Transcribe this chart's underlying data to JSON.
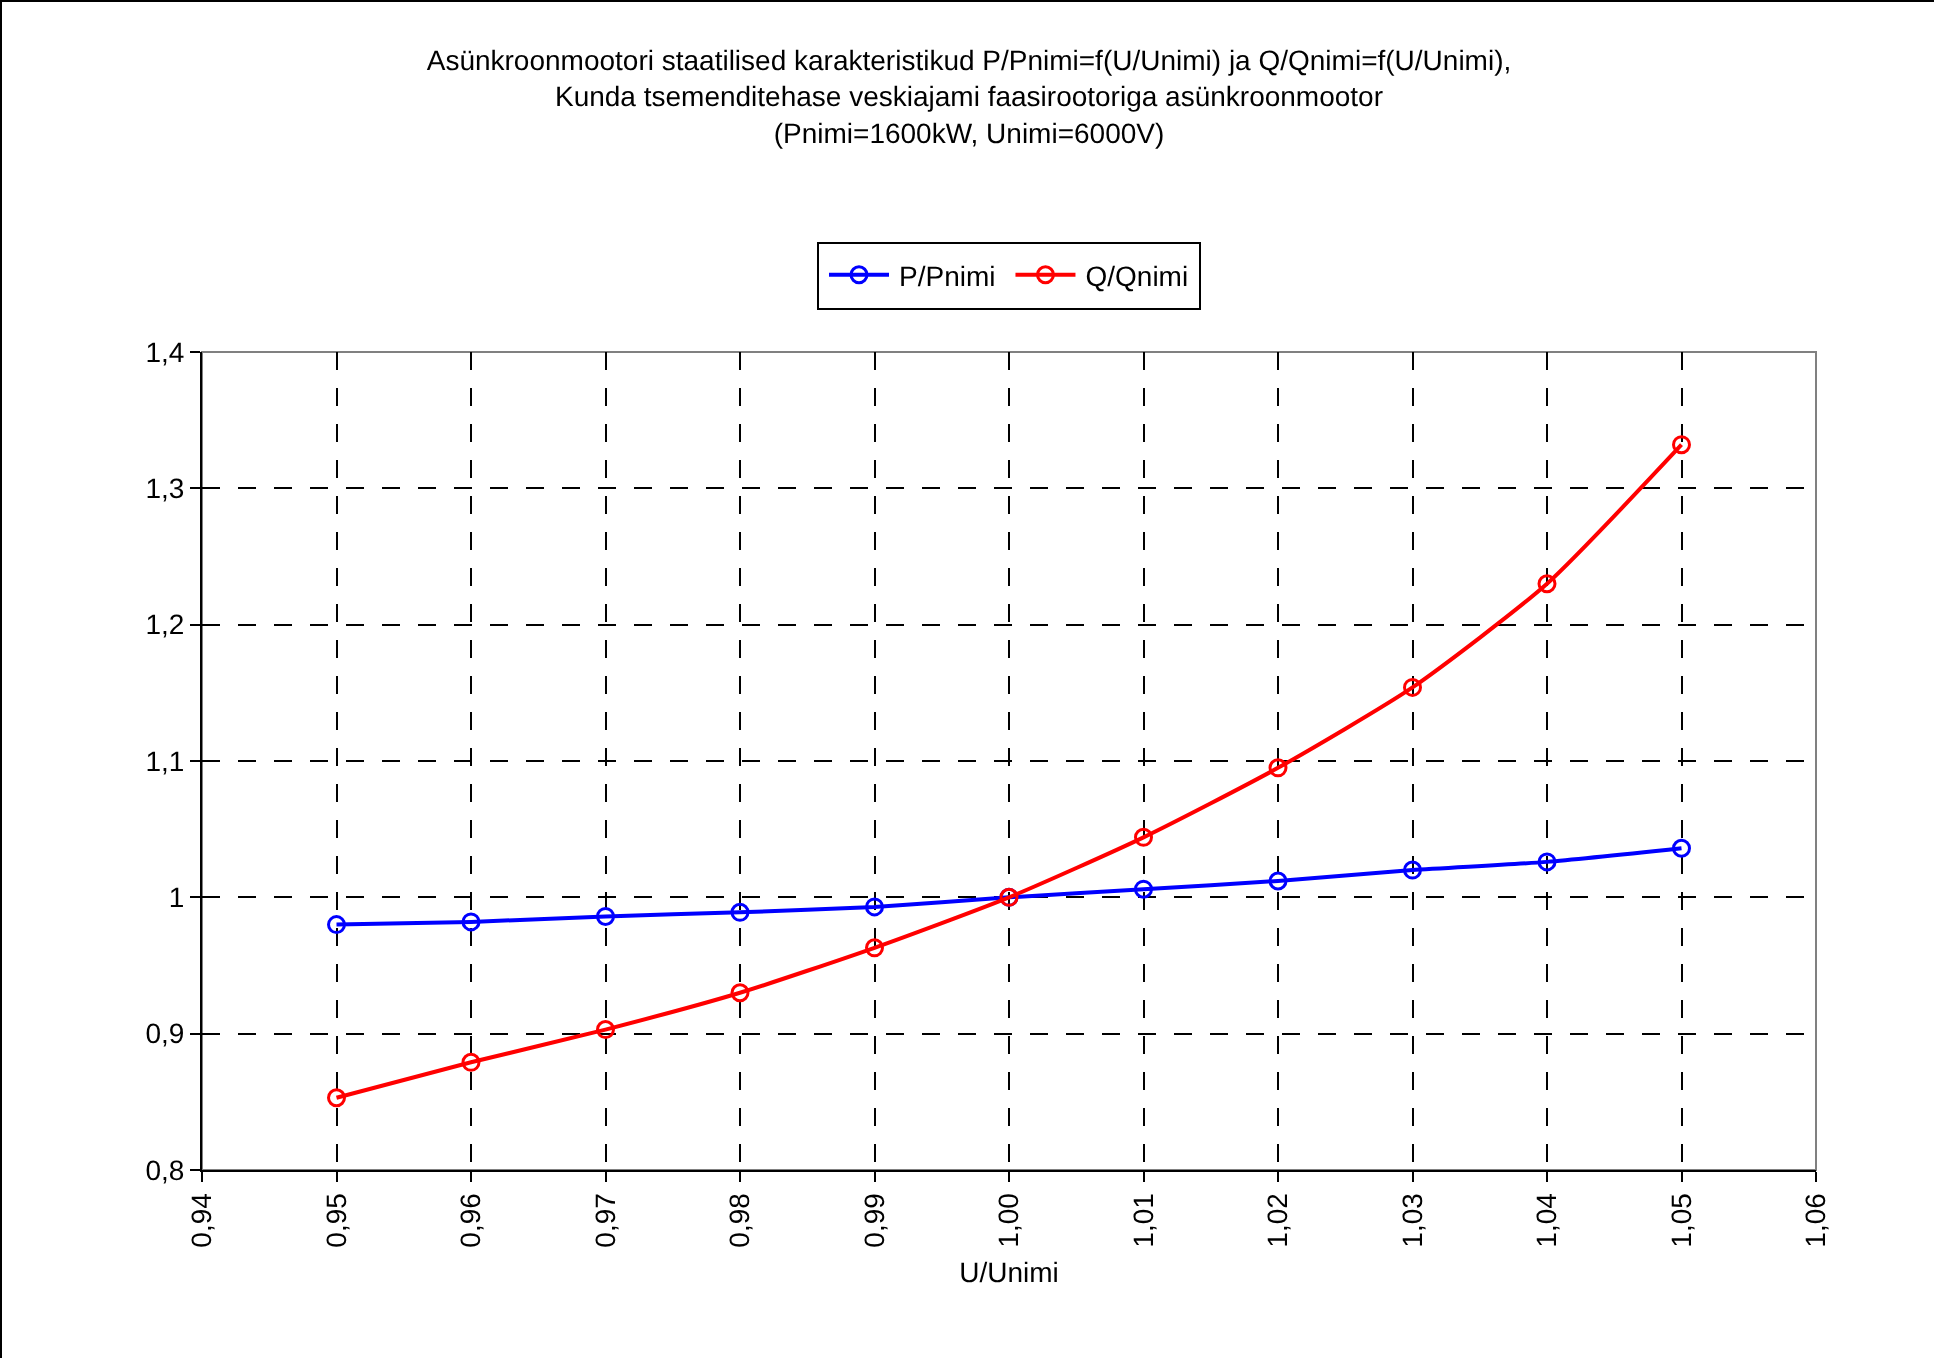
{
  "chart_data": {
    "type": "line",
    "title": "Asünkroonmootori staatilised karakteristikud P/Pnimi=f(U/Unimi) ja Q/Qnimi=f(U/Unimi),\nKunda tsemenditehase veskiajami faasirootoriga asünkroonmootor\n(Pnimi=1600kW, Unimi=6000V)",
    "xlabel": "U/Unimi",
    "x": [
      0.95,
      0.96,
      0.97,
      0.98,
      0.99,
      1.0,
      1.01,
      1.02,
      1.03,
      1.04,
      1.05
    ],
    "series": [
      {
        "name": "P/Pnimi",
        "color": "#0000ff",
        "values": [
          0.98,
          0.982,
          0.986,
          0.989,
          0.993,
          1.0,
          1.006,
          1.012,
          1.02,
          1.026,
          1.036
        ]
      },
      {
        "name": "Q/Qnimi",
        "color": "#ff0000",
        "values": [
          0.853,
          0.879,
          0.903,
          0.93,
          0.963,
          1.0,
          1.044,
          1.095,
          1.154,
          1.23,
          1.332
        ]
      }
    ],
    "xlim": [
      0.94,
      1.06
    ],
    "xticks": [
      {
        "value": 0.94,
        "label": "0,94"
      },
      {
        "value": 0.95,
        "label": "0,95"
      },
      {
        "value": 0.96,
        "label": "0,96"
      },
      {
        "value": 0.97,
        "label": "0,97"
      },
      {
        "value": 0.98,
        "label": "0,98"
      },
      {
        "value": 0.99,
        "label": "0,99"
      },
      {
        "value": 1.0,
        "label": "1,00"
      },
      {
        "value": 1.01,
        "label": "1,01"
      },
      {
        "value": 1.02,
        "label": "1,02"
      },
      {
        "value": 1.03,
        "label": "1,03"
      },
      {
        "value": 1.04,
        "label": "1,04"
      },
      {
        "value": 1.05,
        "label": "1,05"
      },
      {
        "value": 1.06,
        "label": "1,06"
      }
    ],
    "ylim": [
      0.8,
      1.4
    ],
    "yticks": [
      {
        "value": 0.8,
        "label": "0,8"
      },
      {
        "value": 0.9,
        "label": "0,9"
      },
      1,
      {
        "value": 1.1,
        "label": "1,1"
      },
      {
        "value": 1.2,
        "label": "1,2"
      },
      {
        "value": 1.3,
        "label": "1,3"
      },
      {
        "value": 1.4,
        "label": "1,4"
      }
    ],
    "grid": true,
    "legend": "top",
    "marker": "circle",
    "line_style": "solid"
  }
}
